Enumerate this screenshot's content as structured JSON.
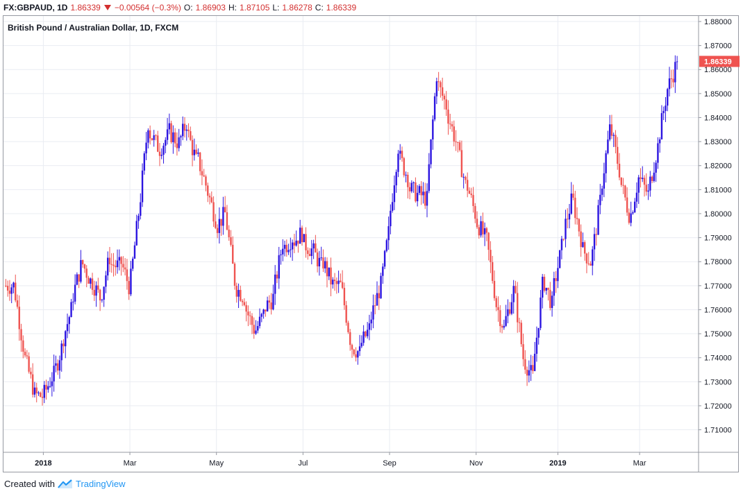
{
  "header": {
    "symbol": "FX:GBPAUD, 1D",
    "last": "1.86339",
    "change": "−0.00564 (−0.3%)",
    "o_label": "O:",
    "o_value": "1.86903",
    "h_label": "H:",
    "h_value": "1.87105",
    "l_label": "L:",
    "l_value": "1.86278",
    "c_label": "C:",
    "c_value": "1.86339"
  },
  "footer": {
    "created_with": "Created with",
    "brand": "TradingView"
  },
  "colors": {
    "up": "#2b14e0",
    "down": "#ef5350",
    "grid": "#e9ecf2",
    "price_tag": "#ef5350",
    "brand": "#2196f3"
  },
  "chart_data": {
    "type": "candlestick",
    "title": "British Pound / Australian Dollar, 1D, FXCM",
    "xlabel": "",
    "ylabel": "",
    "ylim": [
      1.7,
      1.88
    ],
    "y_ticks": [
      "1.88000",
      "1.87000",
      "1.86000",
      "1.85000",
      "1.84000",
      "1.83000",
      "1.82000",
      "1.81000",
      "1.80000",
      "1.79000",
      "1.78000",
      "1.77000",
      "1.76000",
      "1.75000",
      "1.74000",
      "1.73000",
      "1.72000",
      "1.71000"
    ],
    "x_ticks": [
      {
        "label": "2018",
        "bold": true,
        "week": 4
      },
      {
        "label": "Mar",
        "bold": false,
        "week": 13
      },
      {
        "label": "May",
        "bold": false,
        "week": 22
      },
      {
        "label": "Jul",
        "bold": false,
        "week": 31
      },
      {
        "label": "Sep",
        "bold": false,
        "week": 40
      },
      {
        "label": "Nov",
        "bold": false,
        "week": 49
      },
      {
        "label": "2019",
        "bold": true,
        "week": 57.5
      },
      {
        "label": "Mar",
        "bold": false,
        "week": 66
      }
    ],
    "last_price_label": "1.86339",
    "last_price": 1.86339,
    "grid": true,
    "weekly_closes": [
      1.77,
      1.745,
      1.728,
      1.724,
      1.732,
      1.744,
      1.76,
      1.778,
      1.772,
      1.765,
      1.782,
      1.778,
      1.77,
      1.8,
      1.838,
      1.828,
      1.832,
      1.83,
      1.838,
      1.822,
      1.812,
      1.798,
      1.8,
      1.772,
      1.765,
      1.752,
      1.758,
      1.765,
      1.788,
      1.79,
      1.792,
      1.785,
      1.778,
      1.772,
      1.77,
      1.748,
      1.742,
      1.752,
      1.768,
      1.792,
      1.828,
      1.815,
      1.808,
      1.806,
      1.858,
      1.845,
      1.83,
      1.812,
      1.8,
      1.79,
      1.768,
      1.752,
      1.768,
      1.74,
      1.732,
      1.77,
      1.762,
      1.786,
      1.805,
      1.79,
      1.78,
      1.805,
      1.835,
      1.818,
      1.8,
      1.815,
      1.808,
      1.828,
      1.852,
      1.863
    ]
  }
}
